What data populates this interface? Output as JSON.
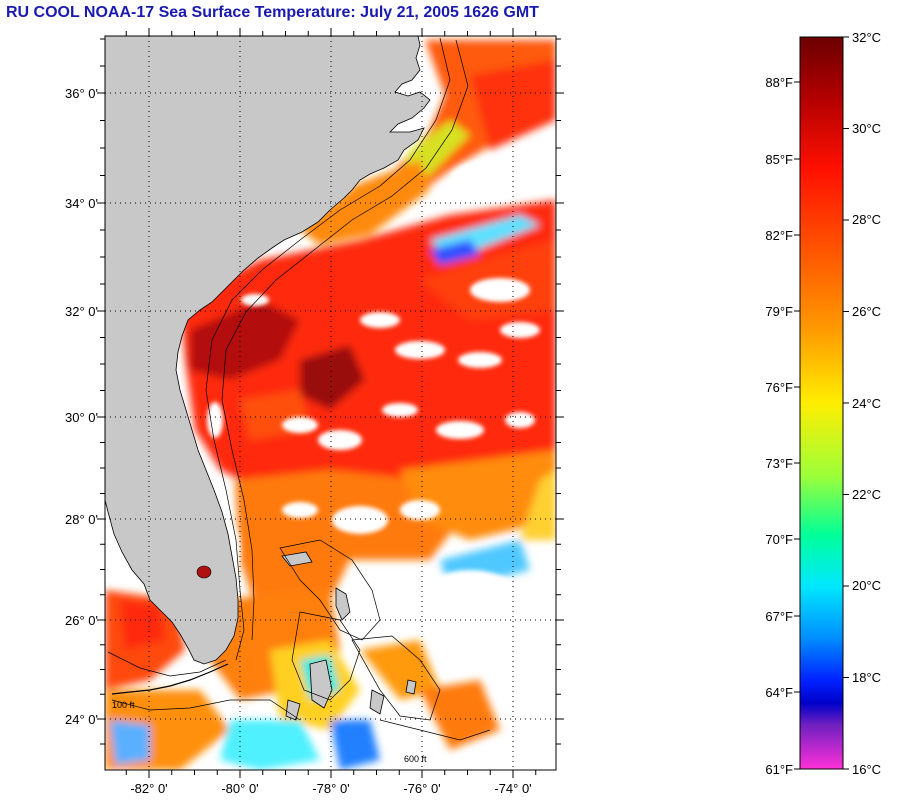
{
  "title": "RU COOL  NOAA-17  Sea Surface Temperature:  July 21, 2005 1626 GMT",
  "map": {
    "lat_labels": [
      "36° 0'",
      "34° 0'",
      "32° 0'",
      "30° 0'",
      "28° 0'",
      "26° 0'",
      "24° 0'"
    ],
    "lon_labels": [
      "-82° 0'",
      "-80° 0'",
      "-78° 0'",
      "-76° 0'",
      "-74° 0'"
    ],
    "contour_labels": [
      "100 ft",
      "600 ft"
    ],
    "colors": {
      "land": "#c8c8c8",
      "cloud": "#ffffff",
      "grid": "#000000"
    }
  },
  "colorbar": {
    "celsius": [
      "32°C",
      "30°C",
      "28°C",
      "26°C",
      "24°C",
      "22°C",
      "20°C",
      "18°C",
      "16°C"
    ],
    "fahrenheit": [
      "88°F",
      "85°F",
      "82°F",
      "79°F",
      "76°F",
      "73°F",
      "70°F",
      "67°F",
      "64°F",
      "61°F"
    ],
    "min_c": 16,
    "max_c": 32
  }
}
